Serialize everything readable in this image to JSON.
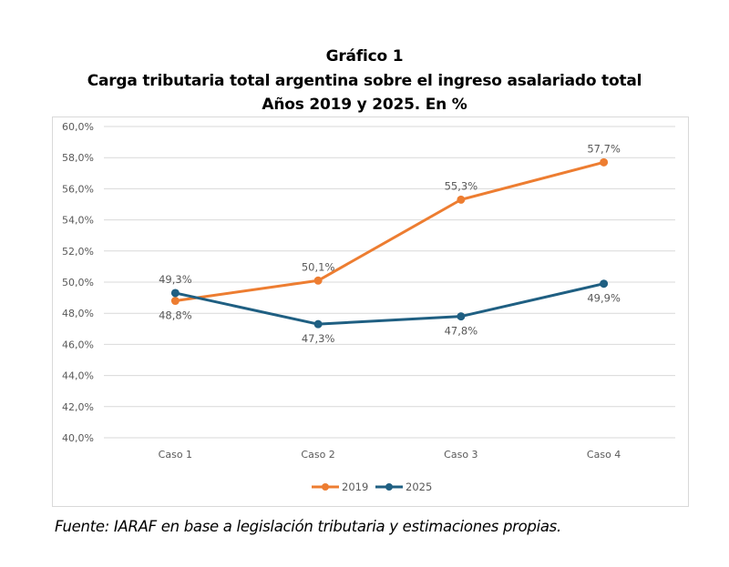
{
  "chart_data": {
    "type": "line",
    "title": "Gráfico 1",
    "subtitle": "Carga tributaria total argentina sobre el ingreso asalariado total",
    "subtitle2": "Años 2019 y 2025. En %",
    "categories": [
      "Caso 1",
      "Caso 2",
      "Caso 3",
      "Caso 4"
    ],
    "series": [
      {
        "name": "2019",
        "color": "#ED7D31",
        "values": [
          48.8,
          50.1,
          55.3,
          57.7
        ],
        "labels": [
          "48,8%",
          "50,1%",
          "55,3%",
          "57,7%"
        ],
        "label_pos": [
          "below",
          "above",
          "above",
          "above"
        ]
      },
      {
        "name": "2025",
        "color": "#1F5F82",
        "values": [
          49.3,
          47.3,
          47.8,
          49.9
        ],
        "labels": [
          "49,3%",
          "47,3%",
          "47,8%",
          "49,9%"
        ],
        "label_pos": [
          "above",
          "below",
          "below",
          "below"
        ]
      }
    ],
    "y_ticks": [
      40,
      42,
      44,
      46,
      48,
      50,
      52,
      54,
      56,
      58,
      60
    ],
    "y_tick_labels": [
      "40,0%",
      "42,0%",
      "44,0%",
      "46,0%",
      "48,0%",
      "50,0%",
      "52,0%",
      "54,0%",
      "56,0%",
      "58,0%",
      "60,0%"
    ],
    "ylim": [
      40,
      60
    ],
    "xlabel": "",
    "ylabel": "",
    "grid": true,
    "legend_position": "bottom"
  },
  "source": "Fuente: IARAF en base a legislación tributaria y estimaciones propias."
}
